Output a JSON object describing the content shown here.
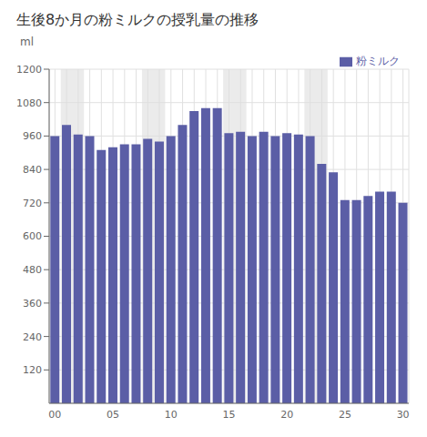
{
  "chart_data": {
    "type": "bar",
    "title": "生後8か月の粉ミルクの授乳量の推移",
    "y_label": "ml",
    "categories": [
      "00",
      null,
      null,
      null,
      null,
      "05",
      null,
      null,
      null,
      null,
      "10",
      null,
      null,
      null,
      null,
      "15",
      null,
      null,
      null,
      null,
      "20",
      null,
      null,
      null,
      null,
      "25",
      null,
      null,
      null,
      null,
      "30"
    ],
    "series": [
      {
        "name": "粉ミルク",
        "color": "#5b5ea6",
        "values": [
          960,
          1000,
          965,
          960,
          910,
          920,
          930,
          930,
          950,
          940,
          960,
          1000,
          1050,
          1060,
          1060,
          970,
          975,
          960,
          975,
          960,
          970,
          965,
          960,
          860,
          830,
          730,
          730,
          745,
          760,
          760,
          720
        ]
      }
    ],
    "ylim": [
      0,
      1200
    ],
    "yticks": [
      120,
      240,
      360,
      480,
      600,
      720,
      840,
      960,
      1080,
      1200
    ],
    "grid": true,
    "legend": "upper right",
    "shaded_ranges": [
      [
        1,
        2
      ],
      [
        8,
        9
      ],
      [
        15,
        16
      ],
      [
        22,
        23
      ]
    ]
  }
}
